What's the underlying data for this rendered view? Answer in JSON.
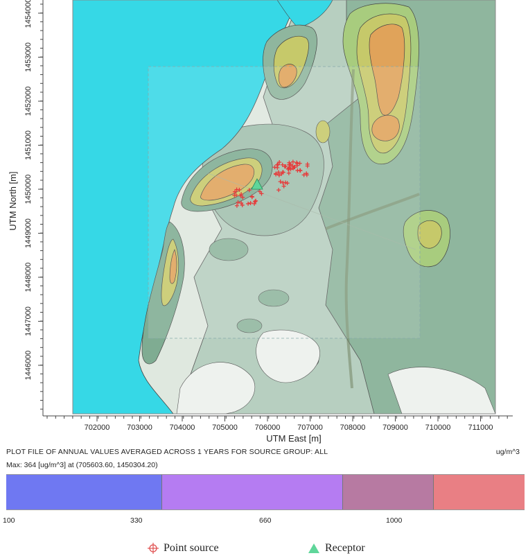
{
  "axes": {
    "x_title": "UTM East [m]",
    "y_title": "UTM North [m]",
    "x_ticks": [
      "702000",
      "703000",
      "704000",
      "705000",
      "706000",
      "707000",
      "708000",
      "709000",
      "710000",
      "711000"
    ],
    "y_ticks": [
      "1454000",
      "1453000",
      "1452000",
      "1451000",
      "1450000",
      "1449000",
      "1448000",
      "1447000",
      "1446000"
    ]
  },
  "plot": {
    "title": "PLOT FILE OF ANNUAL VALUES AVERAGED ACROSS 1 YEARS FOR SOURCE GROUP: ALL",
    "units": "ug/m^3",
    "max_line": "Max:  364  [ug/m^3]  at  (705603.60, 1450304.20)"
  },
  "legend": {
    "levels": [
      "100",
      "330",
      "660",
      "1000"
    ],
    "colors": [
      "#6f78f2",
      "#b57cf2",
      "#b77aa2",
      "#e97f84"
    ]
  },
  "key": {
    "point_source": "Point source",
    "receptor": "Receptor"
  },
  "colors": {
    "sea": "#36d8e6",
    "land_base": "#dfe8df",
    "contour_light": "#a9c7b6",
    "contour_mid": "#7fac92",
    "contour_green": "#a8cc7e",
    "contour_yellow": "#c6c96a",
    "contour_orange": "#e0a35a",
    "source_marker": "#e63a3a",
    "receptor_marker": "#5fd69a"
  }
}
